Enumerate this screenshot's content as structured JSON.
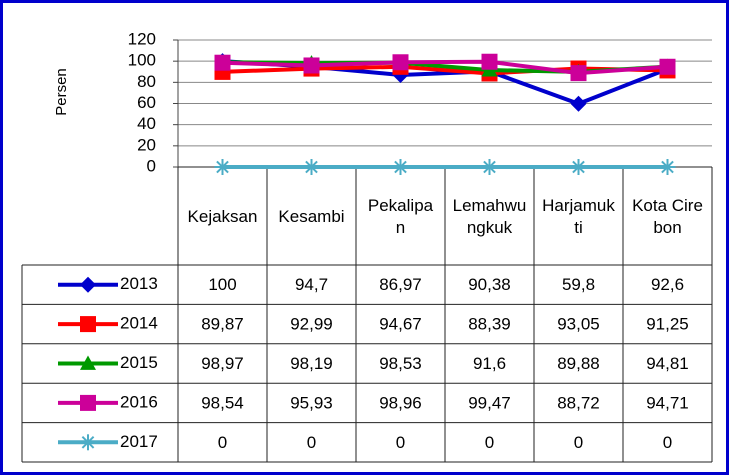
{
  "chart_data": {
    "type": "line",
    "y_label": "Persen",
    "categories": [
      "Kejaksan",
      "Kesambi",
      "Pekalipan",
      "Lemahwungkuk",
      "Harjamukti",
      "Kota Cirebon"
    ],
    "ylim": [
      0,
      120
    ],
    "yticks": [
      0,
      20,
      40,
      60,
      80,
      100,
      120
    ],
    "grid": true,
    "series": [
      {
        "name": "2013",
        "color": "#0000cc",
        "marker": "diamond",
        "values": [
          100,
          94.7,
          86.97,
          90.38,
          59.8,
          92.6
        ],
        "value_labels": [
          "100",
          "94,7",
          "86,97",
          "90,38",
          "59,8",
          "92,6"
        ]
      },
      {
        "name": "2014",
        "color": "#ff0000",
        "marker": "square",
        "values": [
          89.87,
          92.99,
          94.67,
          88.39,
          93.05,
          91.25
        ],
        "value_labels": [
          "89,87",
          "92,99",
          "94,67",
          "88,39",
          "93,05",
          "91,25"
        ]
      },
      {
        "name": "2015",
        "color": "#009900",
        "marker": "triangle",
        "values": [
          98.97,
          98.19,
          98.53,
          91.6,
          89.88,
          94.81
        ],
        "value_labels": [
          "98,97",
          "98,19",
          "98,53",
          "91,6",
          "89,88",
          "94,81"
        ]
      },
      {
        "name": "2016",
        "color": "#cc0099",
        "marker": "square",
        "values": [
          98.54,
          95.93,
          98.96,
          99.47,
          88.72,
          94.71
        ],
        "value_labels": [
          "98,54",
          "95,93",
          "98,96",
          "99,47",
          "88,72",
          "94,71"
        ]
      },
      {
        "name": "2017",
        "color": "#4bacc6",
        "marker": "star",
        "values": [
          0,
          0,
          0,
          0,
          0,
          0
        ],
        "value_labels": [
          "0",
          "0",
          "0",
          "0",
          "0",
          "0"
        ]
      }
    ]
  }
}
